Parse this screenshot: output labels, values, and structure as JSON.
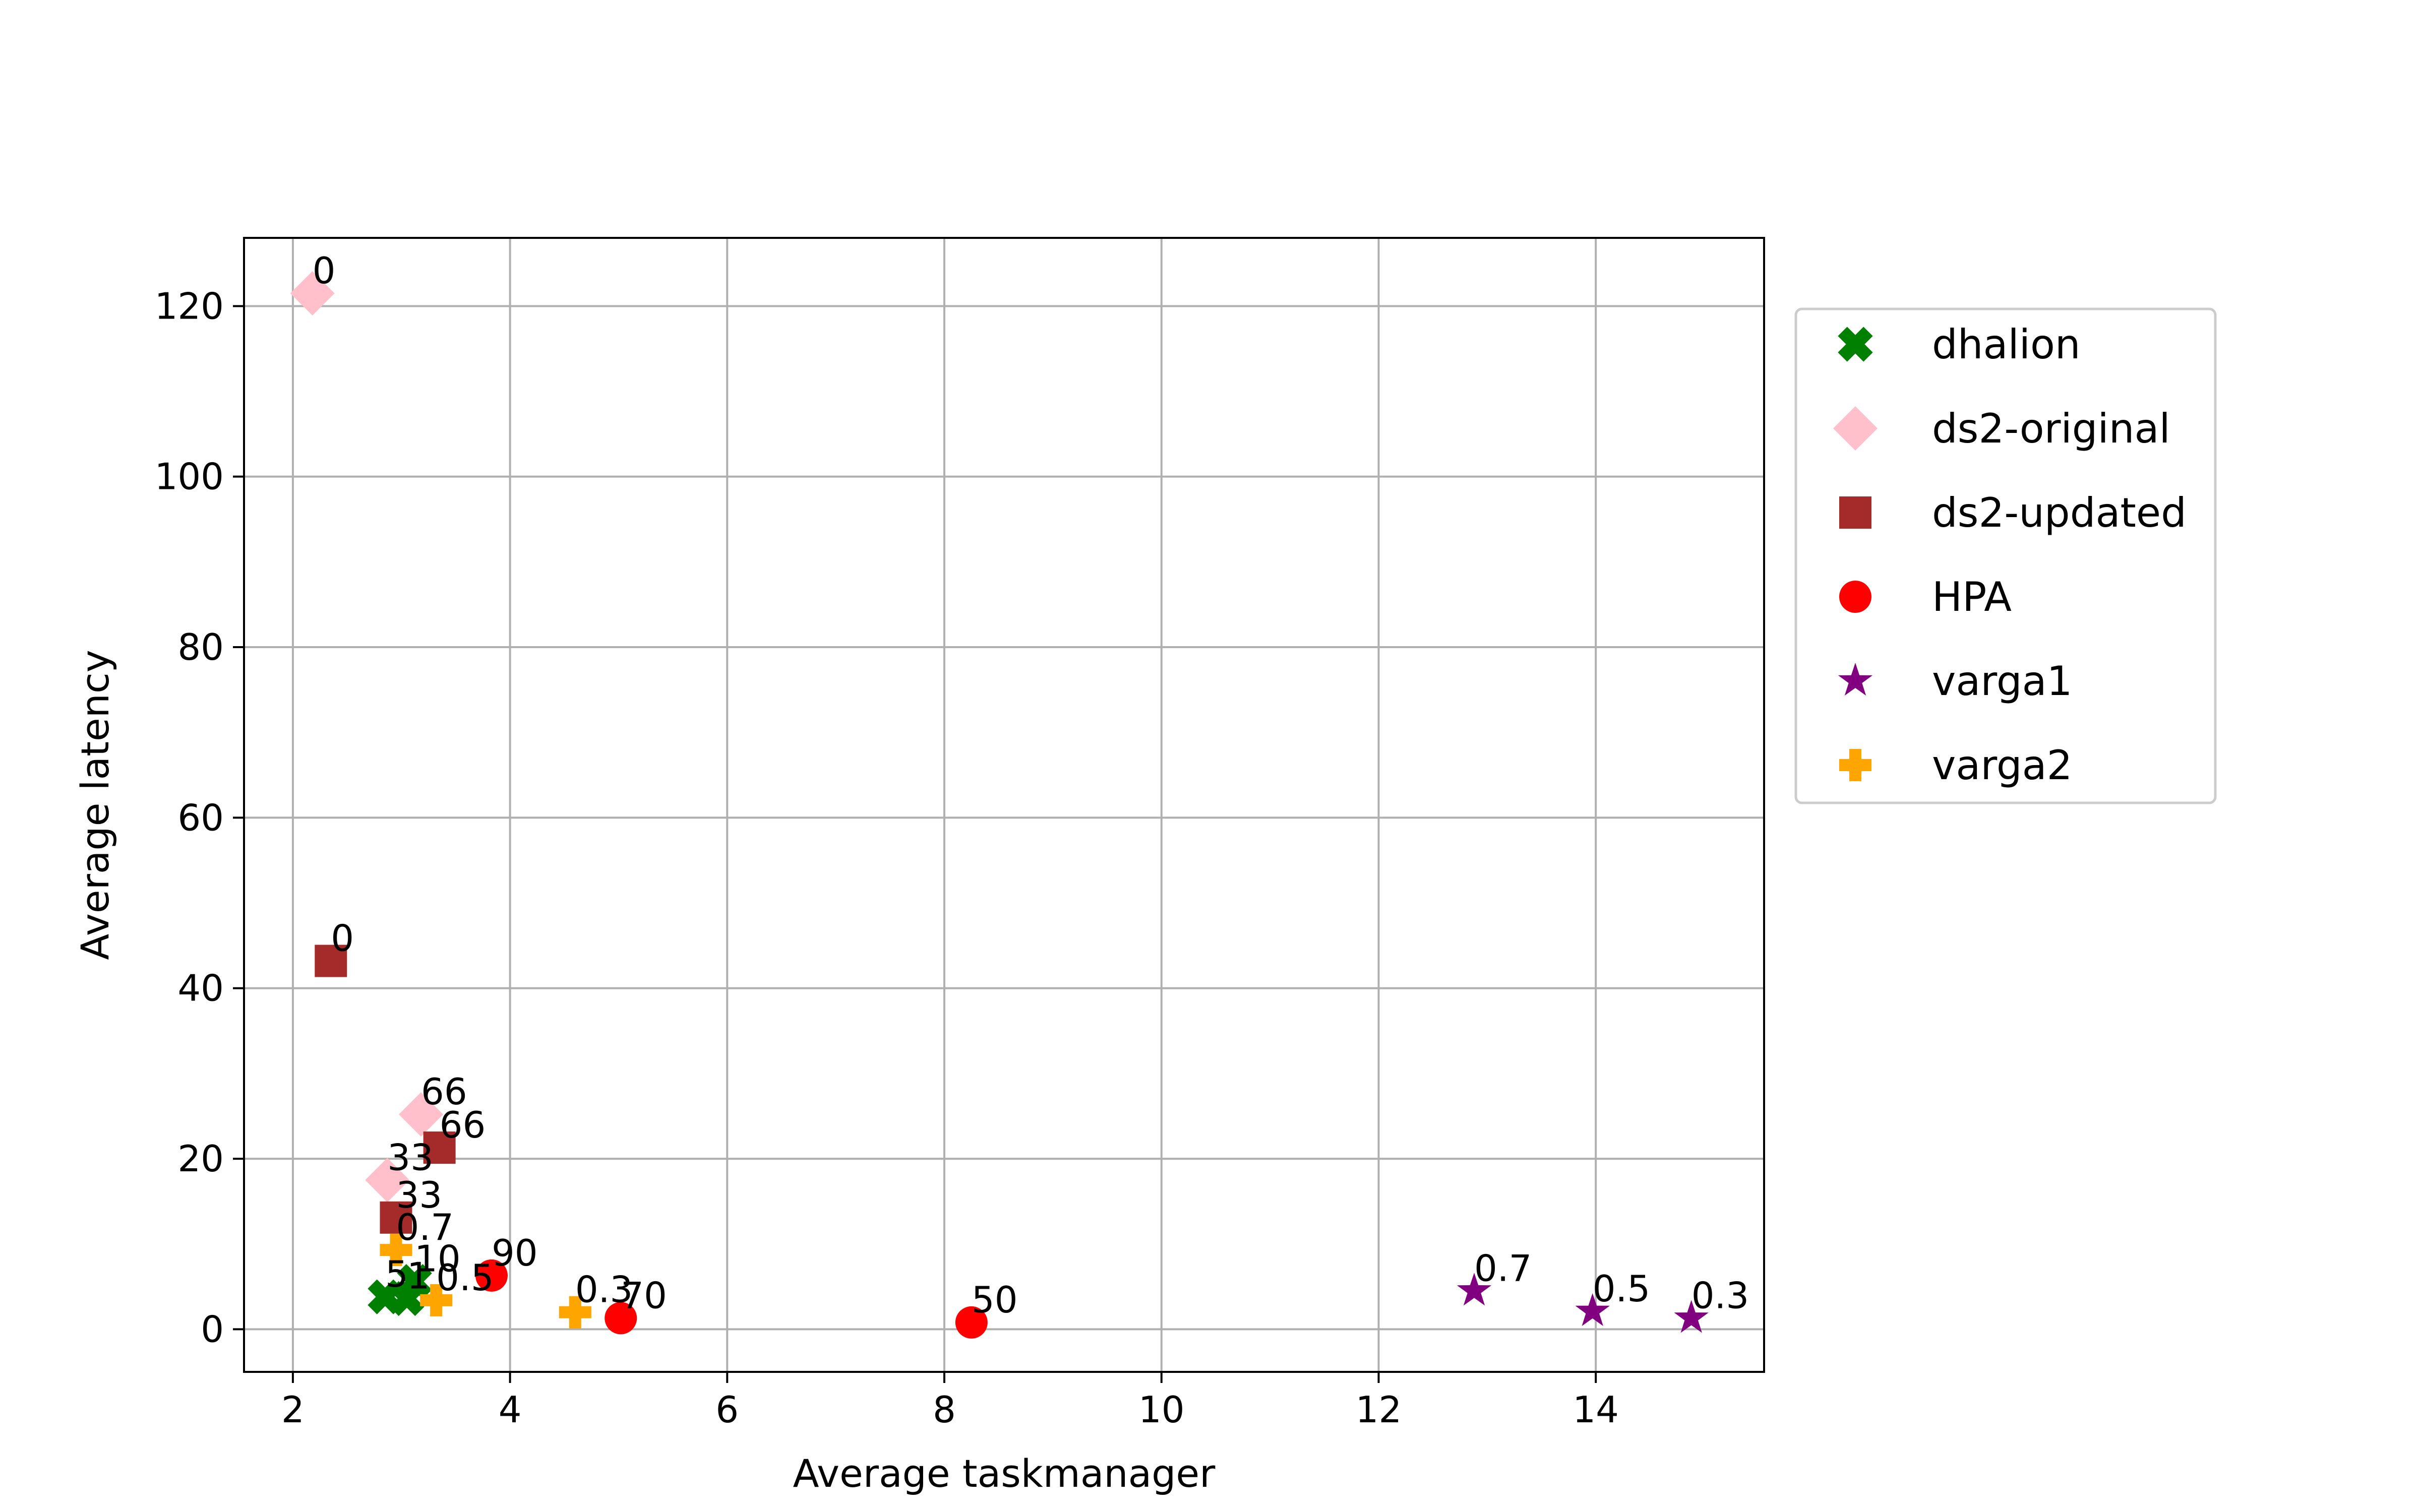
{
  "chart_data": {
    "type": "scatter",
    "title": "",
    "xlabel": "Average taskmanager",
    "ylabel": "Average latency",
    "xlim": [
      1.55,
      15.55
    ],
    "ylim": [
      -5,
      128
    ],
    "xticks": [
      2,
      4,
      6,
      8,
      10,
      12,
      14
    ],
    "yticks": [
      0,
      20,
      40,
      60,
      80,
      100,
      120
    ],
    "grid": true,
    "legend_position": "outside-right-top",
    "series": [
      {
        "name": "dhalion",
        "marker": "x-filled",
        "color": "#008000",
        "points": [
          {
            "x": 2.85,
            "y": 3.8,
            "label": "5"
          },
          {
            "x": 3.05,
            "y": 3.6,
            "label": "1"
          },
          {
            "x": 3.12,
            "y": 5.6,
            "label": "10"
          }
        ]
      },
      {
        "name": "ds2-original",
        "marker": "diamond",
        "color": "#ffc0cb",
        "points": [
          {
            "x": 2.18,
            "y": 121.5,
            "label": "0"
          },
          {
            "x": 2.87,
            "y": 17.5,
            "label": "33"
          },
          {
            "x": 3.18,
            "y": 25.2,
            "label": "66"
          }
        ]
      },
      {
        "name": "ds2-updated",
        "marker": "square",
        "color": "#a52a2a",
        "points": [
          {
            "x": 2.35,
            "y": 43.2,
            "label": "0"
          },
          {
            "x": 2.95,
            "y": 13.1,
            "label": "33"
          },
          {
            "x": 3.35,
            "y": 21.3,
            "label": "66"
          }
        ]
      },
      {
        "name": "HPA",
        "marker": "circle",
        "color": "#ff0000",
        "points": [
          {
            "x": 3.83,
            "y": 6.3,
            "label": "90"
          },
          {
            "x": 5.02,
            "y": 1.3,
            "label": "70"
          },
          {
            "x": 8.25,
            "y": 0.8,
            "label": "50"
          }
        ]
      },
      {
        "name": "varga1",
        "marker": "star",
        "color": "#800080",
        "points": [
          {
            "x": 12.88,
            "y": 4.5,
            "label": "0.7"
          },
          {
            "x": 13.97,
            "y": 2.1,
            "label": "0.5"
          },
          {
            "x": 14.88,
            "y": 1.3,
            "label": "0.3"
          }
        ]
      },
      {
        "name": "varga2",
        "marker": "plus-filled",
        "color": "#ffa500",
        "points": [
          {
            "x": 2.95,
            "y": 9.3,
            "label": "0.7"
          },
          {
            "x": 3.32,
            "y": 3.4,
            "label": "0.5"
          },
          {
            "x": 4.6,
            "y": 2.0,
            "label": "0.3"
          }
        ]
      }
    ]
  }
}
